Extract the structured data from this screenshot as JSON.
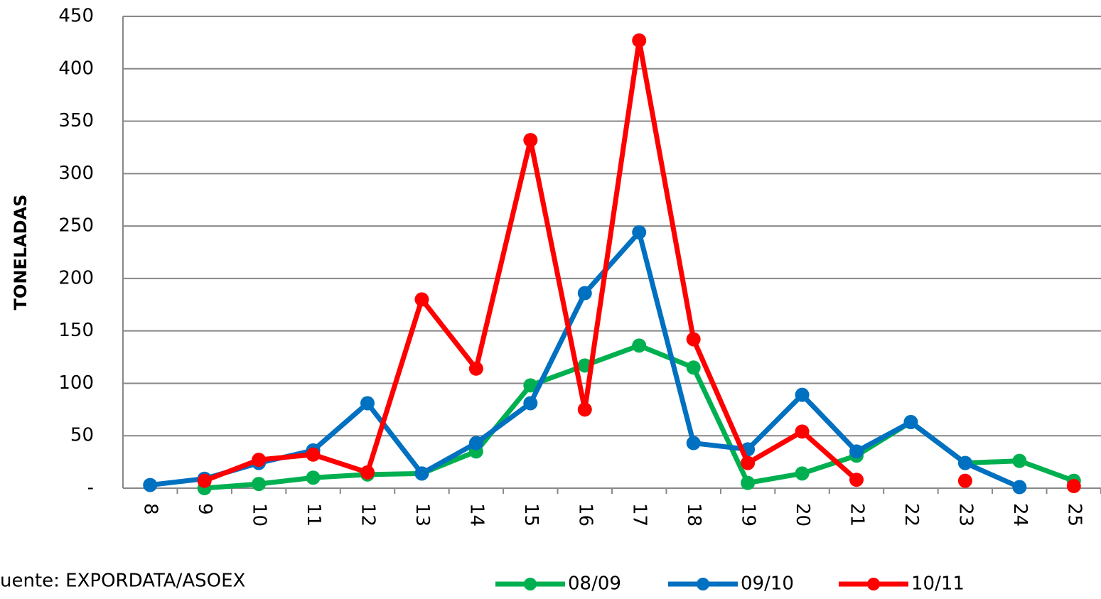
{
  "chart_data": {
    "type": "line",
    "y_label": "TONELADAS",
    "source": "uente: EXPORDATA/ASOEX",
    "categories": [
      "8",
      "9",
      "10",
      "11",
      "12",
      "13",
      "14",
      "15",
      "16",
      "17",
      "18",
      "19",
      "20",
      "21",
      "22",
      "23",
      "24",
      "25"
    ],
    "series": [
      {
        "name": "08/09",
        "color": "#00b050",
        "values": [
          null,
          0,
          4,
          10,
          13,
          14,
          35,
          98,
          117,
          136,
          115,
          5,
          14,
          31,
          63,
          24,
          26,
          7
        ]
      },
      {
        "name": "09/10",
        "color": "#0070c0",
        "values": [
          3,
          9,
          24,
          36,
          81,
          14,
          43,
          81,
          186,
          244,
          43,
          37,
          89,
          35,
          63,
          24,
          1,
          null
        ]
      },
      {
        "name": "10/11",
        "color": "#ff0000",
        "values": [
          null,
          7,
          27,
          32,
          15,
          180,
          114,
          332,
          75,
          427,
          142,
          24,
          54,
          8,
          null,
          7,
          null,
          2
        ]
      }
    ],
    "ylim": [
      0,
      450
    ],
    "yticks": [
      {
        "value": 0,
        "label": "-"
      },
      50,
      100,
      150,
      200,
      250,
      300,
      350,
      400,
      450
    ],
    "grid": true,
    "legend": "bottom"
  }
}
